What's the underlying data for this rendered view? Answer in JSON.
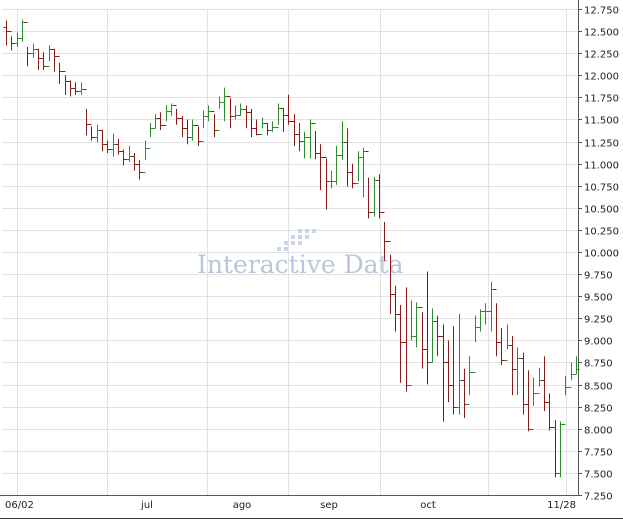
{
  "chart_data": {
    "type": "line",
    "style": "ohlc-bar",
    "title": "",
    "xlabel": "",
    "ylabel": "",
    "watermark": "Interactive Data",
    "grid": true,
    "legend": "none",
    "x_tick_labels": [
      "06/02",
      "jul",
      "ago",
      "sep",
      "oct",
      "11/28"
    ],
    "y_tick_labels": [
      "12.750",
      "12.500",
      "12.250",
      "12.000",
      "11.750",
      "11.500",
      "11.250",
      "11.000",
      "10.750",
      "10.500",
      "10.250",
      "10.000",
      "9.750",
      "9.500",
      "9.250",
      "9.000",
      "8.750",
      "8.500",
      "8.250",
      "8.000",
      "7.750",
      "7.500",
      "7.250"
    ],
    "ylim": [
      7.25,
      12.75
    ],
    "colors": {
      "up": "#2e8b2e",
      "down": "#8b1a1a",
      "grid": "#e2e2e2",
      "axis": "#555555"
    },
    "series": [
      {
        "close": [
          12.5,
          12.36,
          12.42,
          12.6,
          12.25,
          12.3,
          12.2,
          12.1,
          12.3,
          12.22,
          12.05,
          11.93,
          11.86,
          11.82,
          11.84,
          11.45,
          11.3,
          11.38,
          11.22,
          11.16,
          11.22,
          11.14,
          11.05,
          11.09,
          11.0,
          10.9,
          11.18,
          11.4,
          11.52,
          11.44,
          11.6,
          11.66,
          11.52,
          11.4,
          11.3,
          11.44,
          11.26,
          11.54,
          11.6,
          11.38,
          11.7,
          11.76,
          11.54,
          11.55,
          11.62,
          11.58,
          11.4,
          11.34,
          11.46,
          11.38,
          11.42,
          11.63,
          11.55,
          11.48,
          11.34,
          11.26,
          11.3,
          11.46,
          11.12,
          11.07,
          10.8,
          10.8,
          11.1,
          11.24,
          10.9,
          10.78,
          11.08,
          11.14,
          10.45,
          10.82,
          10.45,
          10.12,
          9.52,
          9.3,
          8.98,
          8.5,
          9.05,
          9.38,
          8.9,
          8.75,
          9.22,
          9.05,
          8.75,
          8.5,
          8.25,
          8.55,
          8.28,
          8.64,
          9.15,
          9.33,
          9.33,
          9.58,
          8.98,
          8.78,
          8.95,
          8.68,
          8.8,
          8.28,
          8.0,
          8.4,
          8.55,
          8.3,
          8.02,
          7.5,
          8.05,
          8.47,
          8.62,
          8.68
        ],
        "high": [
          12.62,
          12.44,
          12.48,
          12.63,
          12.32,
          12.36,
          12.3,
          12.26,
          12.34,
          12.3,
          12.14,
          12.0,
          11.94,
          11.92,
          11.92,
          11.62,
          11.42,
          11.44,
          11.38,
          11.26,
          11.34,
          11.28,
          11.16,
          11.2,
          11.12,
          11.04,
          11.26,
          11.46,
          11.56,
          11.58,
          11.66,
          11.68,
          11.62,
          11.54,
          11.5,
          11.5,
          11.42,
          11.6,
          11.66,
          11.56,
          11.76,
          11.86,
          11.74,
          11.66,
          11.68,
          11.66,
          11.62,
          11.5,
          11.52,
          11.46,
          11.48,
          11.68,
          11.63,
          11.78,
          11.56,
          11.46,
          11.36,
          11.5,
          11.37,
          11.22,
          11.06,
          10.92,
          11.2,
          11.48,
          11.4,
          11.0,
          11.14,
          11.18,
          10.84,
          10.85,
          10.88,
          10.34,
          9.97,
          9.62,
          9.4,
          9.6,
          9.45,
          9.43,
          9.32,
          9.78,
          9.36,
          9.28,
          9.18,
          9.0,
          9.16,
          9.3,
          8.68,
          8.82,
          9.28,
          9.35,
          9.42,
          9.66,
          9.42,
          9.14,
          9.18,
          9.05,
          8.92,
          8.86,
          8.66,
          8.58,
          8.69,
          8.82,
          8.4,
          8.1,
          8.08,
          8.6,
          8.75,
          8.82
        ],
        "low": [
          12.34,
          12.28,
          12.32,
          12.38,
          12.1,
          12.2,
          12.06,
          12.06,
          12.16,
          12.04,
          11.9,
          11.78,
          11.76,
          11.78,
          11.78,
          11.32,
          11.26,
          11.24,
          11.14,
          11.12,
          11.08,
          11.1,
          10.98,
          11.02,
          10.92,
          10.82,
          11.04,
          11.3,
          11.4,
          11.38,
          11.48,
          11.54,
          11.44,
          11.3,
          11.22,
          11.26,
          11.2,
          11.4,
          11.48,
          11.3,
          11.62,
          11.48,
          11.4,
          11.5,
          11.54,
          11.4,
          11.3,
          11.32,
          11.4,
          11.32,
          11.36,
          11.44,
          11.36,
          11.44,
          11.2,
          11.14,
          11.06,
          11.06,
          11.05,
          10.7,
          10.48,
          10.72,
          10.76,
          11.04,
          10.74,
          10.72,
          10.8,
          10.62,
          10.38,
          10.4,
          10.38,
          9.9,
          9.3,
          9.1,
          8.52,
          8.42,
          9.0,
          8.92,
          8.68,
          8.5,
          8.75,
          8.82,
          8.08,
          8.3,
          8.16,
          8.16,
          8.12,
          8.38,
          8.98,
          9.1,
          9.18,
          9.1,
          8.82,
          8.72,
          8.9,
          8.38,
          8.38,
          8.16,
          7.97,
          8.26,
          8.48,
          8.2,
          7.98,
          7.45,
          7.45,
          8.38,
          8.55,
          8.62
        ]
      }
    ]
  }
}
